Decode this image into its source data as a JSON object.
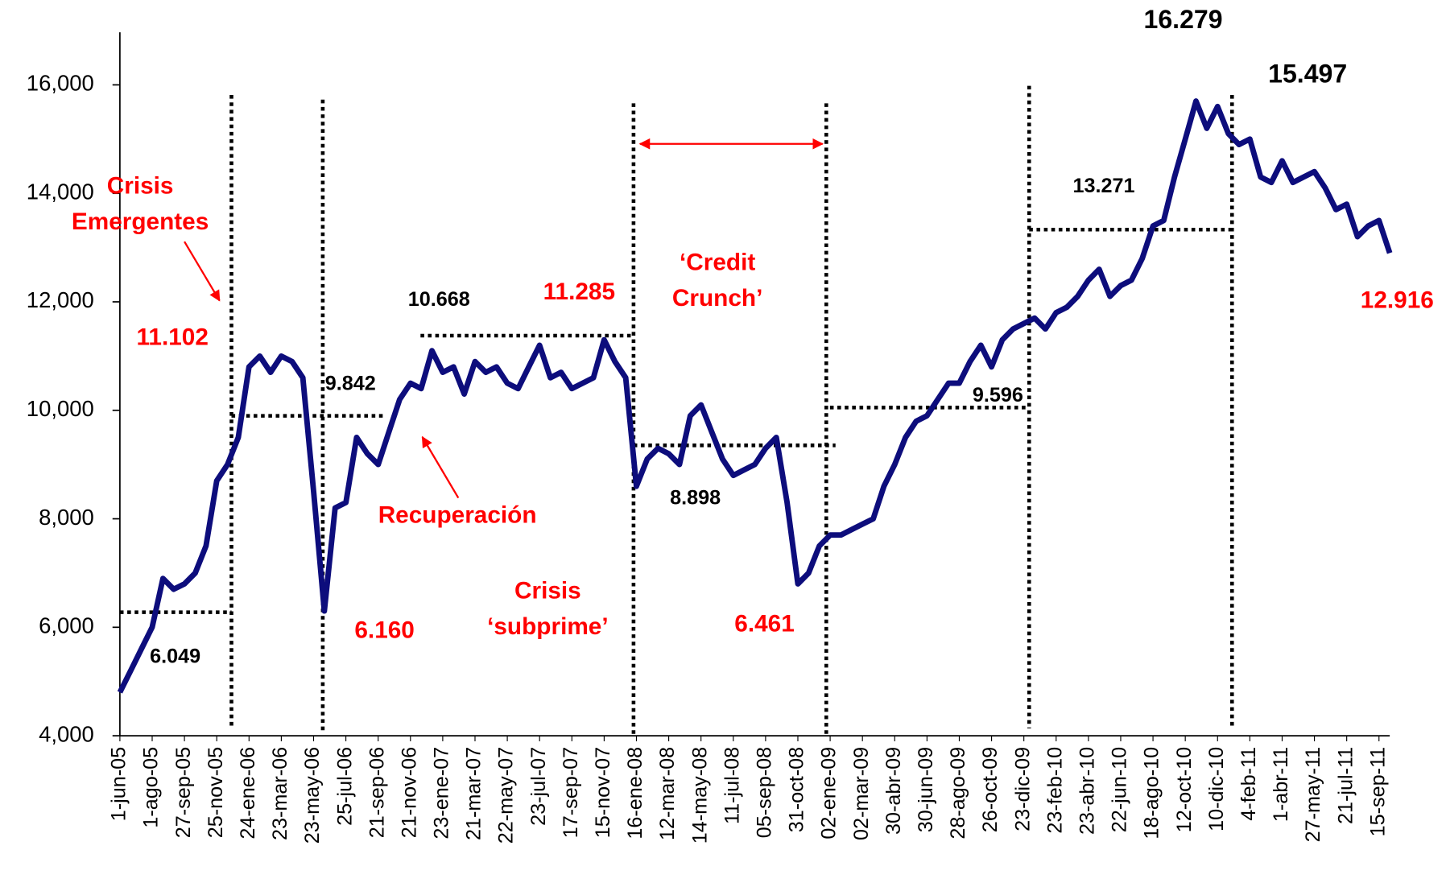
{
  "chart_data": {
    "type": "line",
    "color": "#0d0d7c",
    "categories": [
      "1-jun-05",
      null,
      null,
      "1-ago-05",
      null,
      null,
      "27-sep-05",
      null,
      null,
      "25-nov-05",
      null,
      null,
      "24-ene-06",
      null,
      null,
      "23-mar-06",
      null,
      null,
      "23-may-06",
      null,
      null,
      "25-jul-06",
      null,
      null,
      "21-sep-06",
      null,
      null,
      "21-nov-06",
      null,
      null,
      "23-ene-07",
      null,
      null,
      "21-mar-07",
      null,
      null,
      "22-may-07",
      null,
      null,
      "23-jul-07",
      null,
      null,
      "17-sep-07",
      null,
      null,
      "15-nov-07",
      null,
      null,
      "16-ene-08",
      null,
      null,
      "12-mar-08",
      null,
      null,
      "14-may-08",
      null,
      null,
      "11-jul-08",
      null,
      null,
      "05-sep-08",
      null,
      null,
      "31-oct-08",
      null,
      null,
      "02-ene-09",
      null,
      null,
      "02-mar-09",
      null,
      null,
      "30-abr-09",
      null,
      null,
      "30-jun-09",
      null,
      null,
      "28-ago-09",
      null,
      null,
      "26-oct-09",
      null,
      null,
      "23-dic-09",
      null,
      null,
      "23-feb-10",
      null,
      null,
      "23-abr-10",
      null,
      null,
      "22-jun-10",
      null,
      null,
      "18-ago-10",
      null,
      null,
      "12-oct-10",
      null,
      null,
      "10-dic-10",
      null,
      null,
      "4-feb-11",
      null,
      null,
      "1-abr-11",
      null,
      null,
      "27-may-11",
      null,
      null,
      "21-jul-11",
      null,
      null,
      "15-sep-11",
      null
    ],
    "values": [
      4800,
      5200,
      5600,
      6000,
      6900,
      6700,
      6800,
      7000,
      7500,
      8700,
      9000,
      9500,
      10800,
      11000,
      10700,
      11000,
      10900,
      10600,
      8500,
      6300,
      8200,
      8300,
      9500,
      9200,
      9000,
      9600,
      10200,
      10500,
      10400,
      11100,
      10700,
      10800,
      10300,
      10900,
      10700,
      10800,
      10500,
      10400,
      10800,
      11200,
      10600,
      10700,
      10400,
      10500,
      10600,
      11300,
      10900,
      10600,
      8600,
      9100,
      9300,
      9200,
      9000,
      9900,
      10100,
      9600,
      9100,
      8800,
      8900,
      9000,
      9300,
      9500,
      8300,
      6800,
      7000,
      7500,
      7700,
      7700,
      7800,
      7900,
      8000,
      8600,
      9000,
      9500,
      9800,
      9900,
      10200,
      10500,
      10500,
      10900,
      11200,
      10800,
      11300,
      11500,
      11600,
      11700,
      11500,
      11800,
      11900,
      12100,
      12400,
      12600,
      12100,
      12300,
      12400,
      12800,
      13400,
      13500,
      14300,
      15000,
      15700,
      15200,
      15600,
      15100,
      14900,
      15000,
      14300,
      14200,
      14600,
      14200,
      14300,
      14400,
      14100,
      13700,
      13800,
      13200,
      13400,
      13500,
      12900
    ],
    "ylim": [
      4000,
      16000
    ],
    "yticks": [
      {
        "value": 4000,
        "label": "4,000"
      },
      {
        "value": 6000,
        "label": "6,000"
      },
      {
        "value": 8000,
        "label": "8,000"
      },
      {
        "value": 10000,
        "label": "10,000"
      },
      {
        "value": 12000,
        "label": "12,000"
      },
      {
        "value": 14000,
        "label": "14,000"
      },
      {
        "value": 16000,
        "label": "16,000"
      }
    ],
    "annotations": [
      {
        "lines": [
          "Crisis",
          "Emergentes"
        ],
        "color": "#ff0000"
      },
      {
        "lines": [
          "11.102"
        ],
        "color": "#ff0000"
      },
      {
        "lines": [
          "9.842"
        ],
        "color": "#000000"
      },
      {
        "lines": [
          "Recuperación"
        ],
        "color": "#ff0000"
      },
      {
        "lines": [
          "6.160"
        ],
        "color": "#ff0000"
      },
      {
        "lines": [
          "6.049"
        ],
        "color": "#000000"
      },
      {
        "lines": [
          "10.668"
        ],
        "color": "#000000"
      },
      {
        "lines": [
          "11.285"
        ],
        "color": "#ff0000"
      },
      {
        "lines": [
          "Crisis",
          "‘subprime’"
        ],
        "color": "#ff0000"
      },
      {
        "lines": [
          "‘Credit",
          "Crunch’"
        ],
        "color": "#ff0000"
      },
      {
        "lines": [
          "8.898"
        ],
        "color": "#000000"
      },
      {
        "lines": [
          "6.461"
        ],
        "color": "#ff0000"
      },
      {
        "lines": [
          "9.596"
        ],
        "color": "#000000"
      },
      {
        "lines": [
          "13.271"
        ],
        "color": "#000000"
      },
      {
        "lines": [
          "16.279"
        ],
        "color": "#000000"
      },
      {
        "lines": [
          "15.497"
        ],
        "color": "#000000"
      },
      {
        "lines": [
          "12.916"
        ],
        "color": "#ff0000"
      }
    ]
  }
}
